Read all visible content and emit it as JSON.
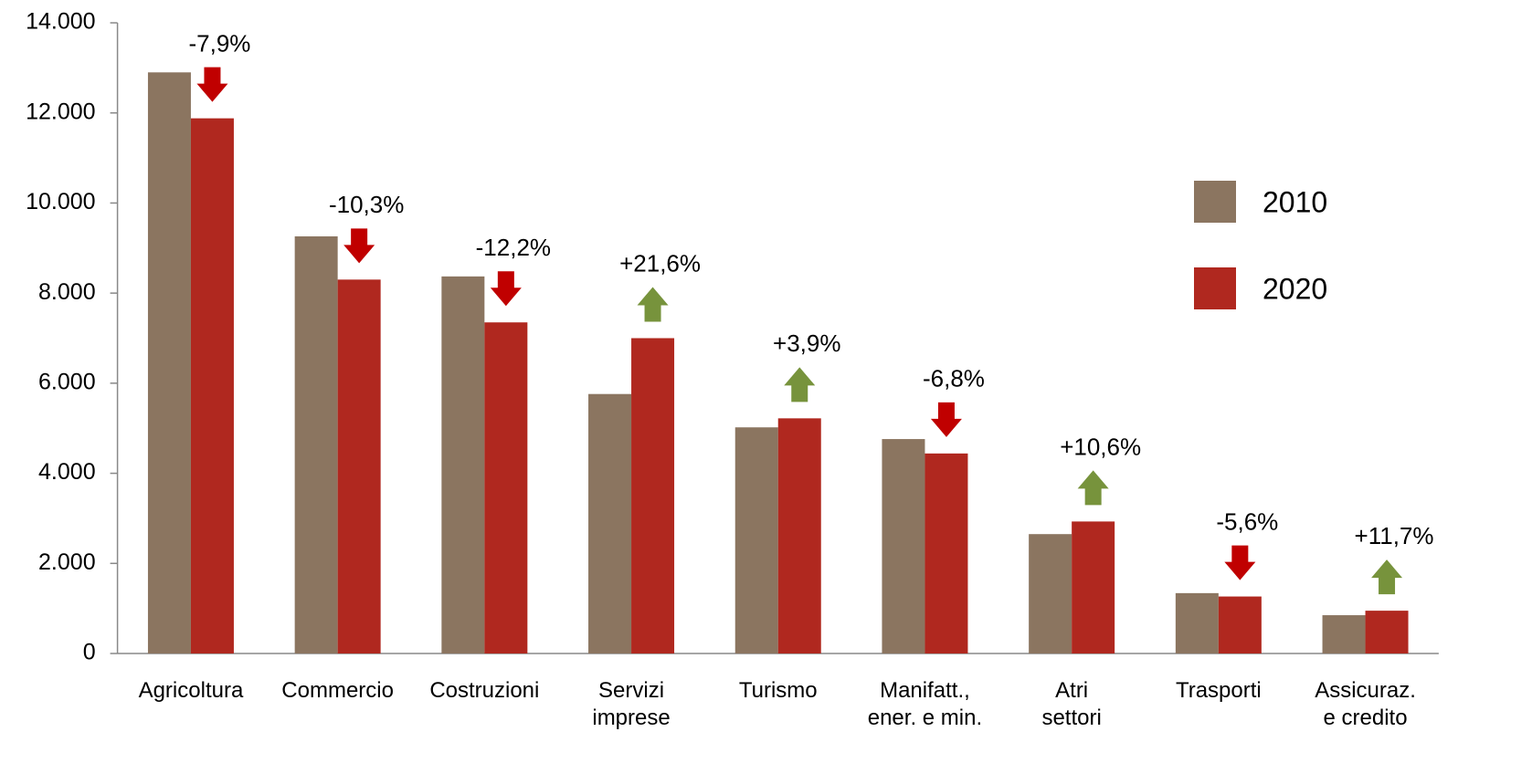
{
  "chart_data": {
    "type": "bar",
    "categories": [
      "Agricoltura",
      "Commercio",
      "Costruzioni",
      "Servizi\nimprese",
      "Turismo",
      "Manifatt.,\nener. e min.",
      "Atri\nsettori",
      "Trasporti",
      "Assicuraz.\ne credito"
    ],
    "series": [
      {
        "name": "2010",
        "color": "#8b7560",
        "values": [
          12900,
          9260,
          8370,
          5760,
          5020,
          4760,
          2650,
          1340,
          850
        ]
      },
      {
        "name": "2020",
        "color": "#b0281f",
        "values": [
          11880,
          8300,
          7350,
          7000,
          5220,
          4440,
          2930,
          1265,
          950
        ]
      }
    ],
    "annotations": [
      "-7,9%",
      "-10,3%",
      "-12,2%",
      "+21,6%",
      "+3,9%",
      "-6,8%",
      "+10,6%",
      "-5,6%",
      "+11,7%"
    ],
    "arrow_colors": {
      "down": "#c00000",
      "up": "#77933c"
    },
    "ylim": [
      0,
      14000
    ],
    "yticks": [
      {
        "value": 0,
        "label": "0"
      },
      {
        "value": 2000,
        "label": "2.000"
      },
      {
        "value": 4000,
        "label": "4.000"
      },
      {
        "value": 6000,
        "label": "6.000"
      },
      {
        "value": 8000,
        "label": "8.000"
      },
      {
        "value": 10000,
        "label": "10.000"
      },
      {
        "value": 12000,
        "label": "12.000"
      },
      {
        "value": 14000,
        "label": "14.000"
      }
    ],
    "legend": "right",
    "grid": false
  }
}
